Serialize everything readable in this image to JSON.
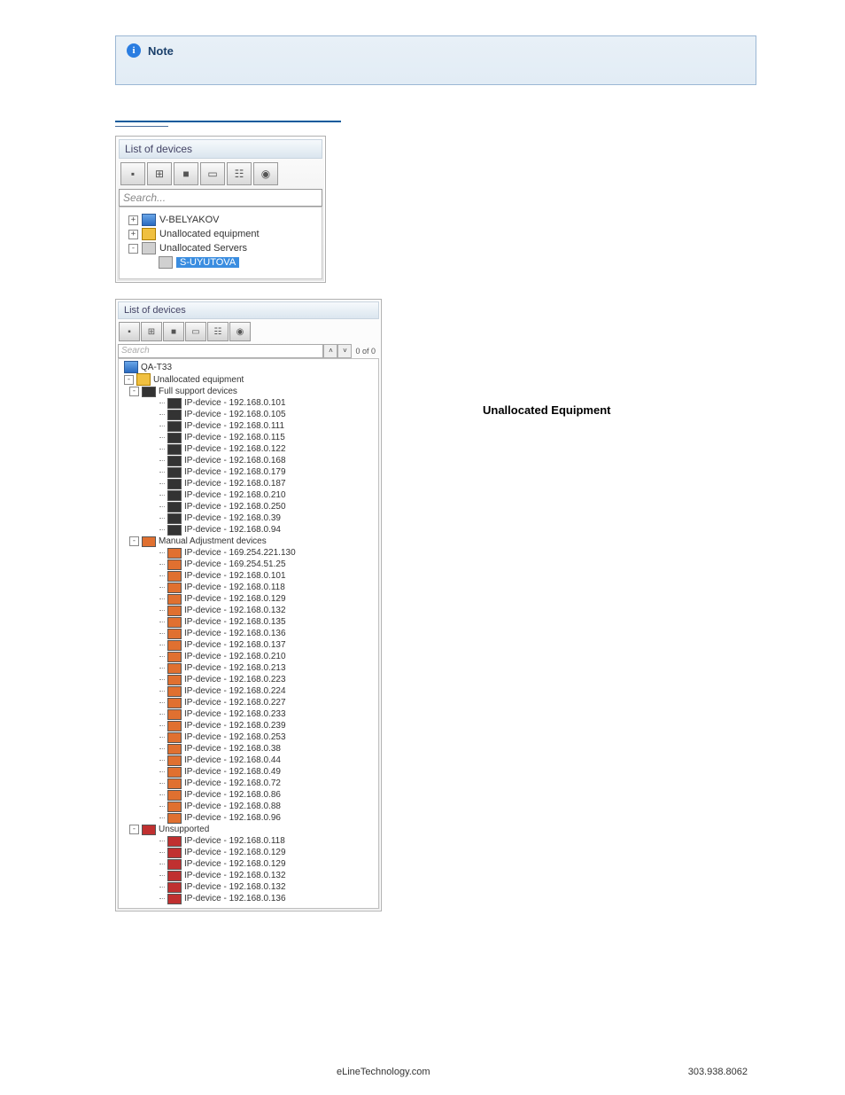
{
  "note": {
    "label": "Note"
  },
  "heading": "Unallocated Equipment",
  "panel1": {
    "title": "List of devices",
    "search_placeholder": "Search...",
    "root1": "V-BELYAKOV",
    "root2": "Unallocated equipment",
    "root3": "Unallocated Servers",
    "selected": "S-UYUTOVA"
  },
  "panel2": {
    "title": "List of devices",
    "search_placeholder": "Search",
    "count": "0 of 0",
    "root": "QA-T33",
    "unalloc": "Unallocated equipment",
    "grp_full": "Full support devices",
    "grp_manual": "Manual Adjustment devices",
    "grp_unsup": "Unsupported",
    "full": [
      "IP-device - 192.168.0.101",
      "IP-device - 192.168.0.105",
      "IP-device - 192.168.0.111",
      "IP-device - 192.168.0.115",
      "IP-device - 192.168.0.122",
      "IP-device - 192.168.0.168",
      "IP-device - 192.168.0.179",
      "IP-device - 192.168.0.187",
      "IP-device - 192.168.0.210",
      "IP-device - 192.168.0.250",
      "IP-device - 192.168.0.39",
      "IP-device - 192.168.0.94"
    ],
    "manual": [
      "IP-device - 169.254.221.130",
      "IP-device - 169.254.51.25",
      "IP-device - 192.168.0.101",
      "IP-device - 192.168.0.118",
      "IP-device - 192.168.0.129",
      "IP-device - 192.168.0.132",
      "IP-device - 192.168.0.135",
      "IP-device - 192.168.0.136",
      "IP-device - 192.168.0.137",
      "IP-device - 192.168.0.210",
      "IP-device - 192.168.0.213",
      "IP-device - 192.168.0.223",
      "IP-device - 192.168.0.224",
      "IP-device - 192.168.0.227",
      "IP-device - 192.168.0.233",
      "IP-device - 192.168.0.239",
      "IP-device - 192.168.0.253",
      "IP-device - 192.168.0.38",
      "IP-device - 192.168.0.44",
      "IP-device - 192.168.0.49",
      "IP-device - 192.168.0.72",
      "IP-device - 192.168.0.86",
      "IP-device - 192.168.0.88",
      "IP-device - 192.168.0.96"
    ],
    "unsup": [
      "IP-device - 192.168.0.118",
      "IP-device - 192.168.0.129",
      "IP-device - 192.168.0.129",
      "IP-device - 192.168.0.132",
      "IP-device - 192.168.0.132",
      "IP-device - 192.168.0.136"
    ]
  },
  "footer": {
    "left": "eLineTechnology.com",
    "right": "303.938.8062"
  }
}
